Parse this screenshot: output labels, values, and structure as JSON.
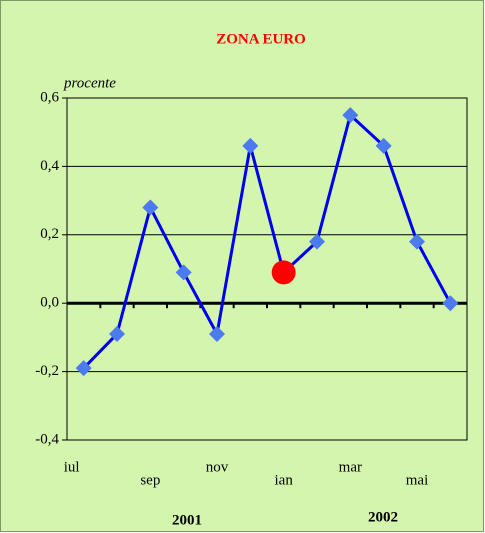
{
  "chart_data": {
    "type": "line",
    "title": "ZONA EURO",
    "y_label": "procente",
    "categories": [
      "iul",
      null,
      "sep",
      null,
      "nov",
      null,
      "ian",
      null,
      "mar",
      null,
      "mai",
      null
    ],
    "series": [
      {
        "color": "#0000ee",
        "marker_color": "#4b7bef",
        "values": [
          -0.19,
          -0.09,
          0.28,
          0.09,
          -0.09,
          0.46,
          0.09,
          0.18,
          0.55,
          0.46,
          0.18,
          0.0
        ]
      }
    ],
    "highlight": {
      "index": 6,
      "color": "#ff0000"
    },
    "ylim": [
      -0.4,
      0.6
    ],
    "yticks": [
      {
        "value": -0.4,
        "label": "-0,4"
      },
      {
        "value": -0.2,
        "label": "-0,2"
      },
      {
        "value": 0,
        "label": "0,0"
      },
      {
        "value": 0.2,
        "label": "0,2"
      },
      {
        "value": 0.4,
        "label": "0,4"
      },
      {
        "value": 0.6,
        "label": "0,6"
      }
    ],
    "grid": true,
    "annotations": [
      "2001",
      "2002"
    ]
  }
}
